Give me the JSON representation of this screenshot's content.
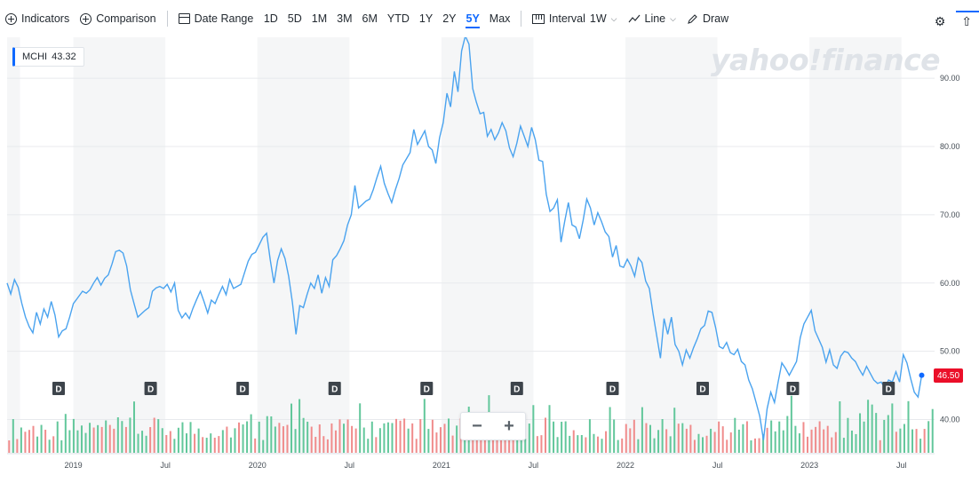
{
  "toolbar": {
    "indicators": "Indicators",
    "comparison": "Comparison",
    "date_range": "Date Range",
    "ranges": [
      "1D",
      "5D",
      "1M",
      "3M",
      "6M",
      "YTD",
      "1Y",
      "2Y",
      "5Y",
      "Max"
    ],
    "active_range": "5Y",
    "interval_label": "Interval",
    "interval_value": "1W",
    "line_label": "Line",
    "draw_label": "Draw"
  },
  "ticker": {
    "symbol": "MCHI",
    "value": "43.32"
  },
  "watermark": "yahoo!finance",
  "price_tag": "46.50",
  "zoom": {
    "minus": "−",
    "plus": "+"
  },
  "dividend_marker": "D",
  "colors": {
    "line": "#4aa3ef",
    "accent": "#0f69ff",
    "vol_up": "#62c79b",
    "vol_down": "#f08c8c",
    "price_tag": "#eb0f29",
    "band": "#f5f6f7"
  },
  "chart_data": {
    "type": "line",
    "interval": "1W",
    "title": "",
    "xlabel": "",
    "ylabel": "",
    "ylim": [
      35,
      96
    ],
    "yticks": [
      40,
      50,
      60,
      70,
      80,
      90
    ],
    "ytick_labels": [
      "40.00",
      "50.00",
      "60.00",
      "70.00",
      "80.00",
      "90.00"
    ],
    "x_ticks": [
      {
        "label": "2019",
        "t": 2019.0
      },
      {
        "label": "Jul",
        "t": 2019.5
      },
      {
        "label": "2020",
        "t": 2020.0
      },
      {
        "label": "Jul",
        "t": 2020.5
      },
      {
        "label": "2021",
        "t": 2021.0
      },
      {
        "label": "Jul",
        "t": 2021.5
      },
      {
        "label": "2022",
        "t": 2022.0
      },
      {
        "label": "Jul",
        "t": 2022.5
      },
      {
        "label": "2023",
        "t": 2023.0
      },
      {
        "label": "Jul",
        "t": 2023.5
      }
    ],
    "xlim": [
      2018.64,
      2023.68
    ],
    "series": [
      {
        "points": [
          [
            2018.64,
            60
          ],
          [
            2018.66,
            58.4
          ],
          [
            2018.68,
            60.5
          ],
          [
            2018.7,
            59.4
          ],
          [
            2018.72,
            57
          ],
          [
            2018.74,
            55
          ],
          [
            2018.76,
            53.6
          ],
          [
            2018.78,
            52.7
          ],
          [
            2018.8,
            55.7
          ],
          [
            2018.82,
            54
          ],
          [
            2018.84,
            56.2
          ],
          [
            2018.86,
            55
          ],
          [
            2018.88,
            57.3
          ],
          [
            2018.9,
            55.3
          ],
          [
            2018.92,
            52.1
          ],
          [
            2018.94,
            53
          ],
          [
            2018.96,
            53.3
          ],
          [
            2018.98,
            55
          ],
          [
            2019.0,
            57
          ],
          [
            2019.02,
            57.7
          ],
          [
            2019.05,
            58.8
          ],
          [
            2019.07,
            58.5
          ],
          [
            2019.09,
            59
          ],
          [
            2019.11,
            60
          ],
          [
            2019.13,
            60.8
          ],
          [
            2019.15,
            59.7
          ],
          [
            2019.17,
            60.7
          ],
          [
            2019.19,
            61.2
          ],
          [
            2019.21,
            62.8
          ],
          [
            2019.23,
            64.6
          ],
          [
            2019.25,
            64.8
          ],
          [
            2019.27,
            64.4
          ],
          [
            2019.29,
            62.5
          ],
          [
            2019.31,
            59
          ],
          [
            2019.33,
            57
          ],
          [
            2019.35,
            55
          ],
          [
            2019.37,
            55.5
          ],
          [
            2019.39,
            56
          ],
          [
            2019.41,
            56.4
          ],
          [
            2019.43,
            58.8
          ],
          [
            2019.45,
            59.3
          ],
          [
            2019.47,
            59.5
          ],
          [
            2019.49,
            59.2
          ],
          [
            2019.51,
            59.8
          ],
          [
            2019.53,
            58.7
          ],
          [
            2019.55,
            60
          ],
          [
            2019.57,
            56
          ],
          [
            2019.59,
            54.9
          ],
          [
            2019.61,
            55.6
          ],
          [
            2019.63,
            54.8
          ],
          [
            2019.65,
            56.3
          ],
          [
            2019.67,
            57.6
          ],
          [
            2019.69,
            58.8
          ],
          [
            2019.71,
            57.3
          ],
          [
            2019.73,
            55.6
          ],
          [
            2019.75,
            57.5
          ],
          [
            2019.77,
            57
          ],
          [
            2019.79,
            58.3
          ],
          [
            2019.81,
            59.5
          ],
          [
            2019.83,
            58.3
          ],
          [
            2019.85,
            60.5
          ],
          [
            2019.87,
            59.2
          ],
          [
            2019.89,
            59.5
          ],
          [
            2019.91,
            59.8
          ],
          [
            2019.93,
            61.5
          ],
          [
            2019.95,
            63.2
          ],
          [
            2019.97,
            64.2
          ],
          [
            2019.99,
            64.5
          ],
          [
            2020.01,
            65.6
          ],
          [
            2020.03,
            66.7
          ],
          [
            2020.05,
            67.3
          ],
          [
            2020.07,
            63.4
          ],
          [
            2020.09,
            60
          ],
          [
            2020.11,
            63.3
          ],
          [
            2020.13,
            65
          ],
          [
            2020.15,
            63.6
          ],
          [
            2020.17,
            61
          ],
          [
            2020.19,
            57.2
          ],
          [
            2020.21,
            52.5
          ],
          [
            2020.23,
            56.7
          ],
          [
            2020.25,
            56.4
          ],
          [
            2020.27,
            58.3
          ],
          [
            2020.29,
            60
          ],
          [
            2020.31,
            59.2
          ],
          [
            2020.33,
            61.2
          ],
          [
            2020.35,
            58.5
          ],
          [
            2020.37,
            60.8
          ],
          [
            2020.39,
            59.5
          ],
          [
            2020.41,
            63.4
          ],
          [
            2020.43,
            64
          ],
          [
            2020.45,
            65
          ],
          [
            2020.47,
            66.2
          ],
          [
            2020.49,
            68.5
          ],
          [
            2020.51,
            70
          ],
          [
            2020.53,
            74.3
          ],
          [
            2020.55,
            71
          ],
          [
            2020.57,
            71.5
          ],
          [
            2020.59,
            72
          ],
          [
            2020.61,
            72.3
          ],
          [
            2020.63,
            73.7
          ],
          [
            2020.65,
            75.5
          ],
          [
            2020.67,
            77.1
          ],
          [
            2020.69,
            74.6
          ],
          [
            2020.71,
            73.1
          ],
          [
            2020.73,
            71.8
          ],
          [
            2020.75,
            73.7
          ],
          [
            2020.77,
            75.3
          ],
          [
            2020.79,
            77.3
          ],
          [
            2020.81,
            78.2
          ],
          [
            2020.83,
            79.1
          ],
          [
            2020.85,
            82.5
          ],
          [
            2020.87,
            80.3
          ],
          [
            2020.89,
            81.3
          ],
          [
            2020.91,
            82.3
          ],
          [
            2020.93,
            80
          ],
          [
            2020.95,
            79.5
          ],
          [
            2020.97,
            77.5
          ],
          [
            2020.99,
            81.3
          ],
          [
            2021.01,
            83.5
          ],
          [
            2021.03,
            87.8
          ],
          [
            2021.05,
            85.8
          ],
          [
            2021.07,
            91
          ],
          [
            2021.09,
            88
          ],
          [
            2021.11,
            94
          ],
          [
            2021.13,
            96.2
          ],
          [
            2021.15,
            95
          ],
          [
            2021.17,
            88.5
          ],
          [
            2021.19,
            86.5
          ],
          [
            2021.21,
            84.8
          ],
          [
            2021.23,
            85
          ],
          [
            2021.25,
            81.5
          ],
          [
            2021.27,
            82.5
          ],
          [
            2021.29,
            81
          ],
          [
            2021.31,
            82
          ],
          [
            2021.33,
            83.5
          ],
          [
            2021.35,
            82.3
          ],
          [
            2021.37,
            79.8
          ],
          [
            2021.39,
            78.5
          ],
          [
            2021.41,
            80.5
          ],
          [
            2021.43,
            83
          ],
          [
            2021.45,
            81.5
          ],
          [
            2021.47,
            80
          ],
          [
            2021.49,
            82.8
          ],
          [
            2021.51,
            81
          ],
          [
            2021.53,
            78
          ],
          [
            2021.55,
            77.8
          ],
          [
            2021.57,
            73
          ],
          [
            2021.59,
            70.5
          ],
          [
            2021.61,
            71
          ],
          [
            2021.63,
            72.2
          ],
          [
            2021.65,
            66
          ],
          [
            2021.67,
            69
          ],
          [
            2021.69,
            71.8
          ],
          [
            2021.71,
            68.5
          ],
          [
            2021.73,
            68.2
          ],
          [
            2021.75,
            66.5
          ],
          [
            2021.77,
            69.2
          ],
          [
            2021.79,
            72.3
          ],
          [
            2021.81,
            71
          ],
          [
            2021.83,
            68.5
          ],
          [
            2021.85,
            70.3
          ],
          [
            2021.87,
            69
          ],
          [
            2021.89,
            67.5
          ],
          [
            2021.91,
            66.8
          ],
          [
            2021.93,
            63.8
          ],
          [
            2021.95,
            65.5
          ],
          [
            2021.97,
            62.5
          ],
          [
            2021.99,
            62.3
          ],
          [
            2022.01,
            63.5
          ],
          [
            2022.03,
            62.5
          ],
          [
            2022.05,
            61
          ],
          [
            2022.07,
            63.7
          ],
          [
            2022.09,
            63
          ],
          [
            2022.11,
            60.3
          ],
          [
            2022.13,
            59.2
          ],
          [
            2022.15,
            55.5
          ],
          [
            2022.17,
            52.3
          ],
          [
            2022.19,
            49
          ],
          [
            2022.21,
            54.8
          ],
          [
            2022.23,
            52.5
          ],
          [
            2022.25,
            55
          ],
          [
            2022.27,
            51
          ],
          [
            2022.29,
            50
          ],
          [
            2022.31,
            48
          ],
          [
            2022.33,
            50.2
          ],
          [
            2022.35,
            49
          ],
          [
            2022.37,
            50.5
          ],
          [
            2022.39,
            51.8
          ],
          [
            2022.41,
            53.3
          ],
          [
            2022.43,
            53.8
          ],
          [
            2022.45,
            55.9
          ],
          [
            2022.47,
            55.7
          ],
          [
            2022.49,
            53.5
          ],
          [
            2022.51,
            50.7
          ],
          [
            2022.53,
            50.4
          ],
          [
            2022.55,
            51.3
          ],
          [
            2022.57,
            49.8
          ],
          [
            2022.59,
            49.5
          ],
          [
            2022.61,
            50.3
          ],
          [
            2022.63,
            48.5
          ],
          [
            2022.65,
            48
          ],
          [
            2022.67,
            45.8
          ],
          [
            2022.69,
            44.5
          ],
          [
            2022.71,
            42.5
          ],
          [
            2022.73,
            40.5
          ],
          [
            2022.75,
            37
          ],
          [
            2022.77,
            41.6
          ],
          [
            2022.79,
            44
          ],
          [
            2022.81,
            42.5
          ],
          [
            2022.83,
            45.5
          ],
          [
            2022.85,
            48.3
          ],
          [
            2022.87,
            47.5
          ],
          [
            2022.89,
            46.5
          ],
          [
            2022.91,
            47.5
          ],
          [
            2022.93,
            48.5
          ],
          [
            2022.95,
            52
          ],
          [
            2022.97,
            54
          ],
          [
            2022.99,
            55
          ],
          [
            2023.01,
            56
          ],
          [
            2023.03,
            53
          ],
          [
            2023.05,
            51.8
          ],
          [
            2023.07,
            50.6
          ],
          [
            2023.09,
            48.4
          ],
          [
            2023.11,
            50.2
          ],
          [
            2023.13,
            48
          ],
          [
            2023.15,
            47.5
          ],
          [
            2023.17,
            49.3
          ],
          [
            2023.19,
            50
          ],
          [
            2023.21,
            49.8
          ],
          [
            2023.23,
            49
          ],
          [
            2023.25,
            48.5
          ],
          [
            2023.27,
            47.4
          ],
          [
            2023.29,
            46.5
          ],
          [
            2023.31,
            47.8
          ],
          [
            2023.33,
            46.8
          ],
          [
            2023.35,
            45.8
          ],
          [
            2023.37,
            45.3
          ],
          [
            2023.39,
            45.5
          ],
          [
            2023.41,
            44.6
          ],
          [
            2023.43,
            45.8
          ],
          [
            2023.45,
            45.5
          ],
          [
            2023.47,
            47
          ],
          [
            2023.49,
            45.5
          ],
          [
            2023.51,
            49.5
          ],
          [
            2023.53,
            48.3
          ],
          [
            2023.55,
            46
          ],
          [
            2023.57,
            44
          ],
          [
            2023.59,
            43.3
          ],
          [
            2023.61,
            46.5
          ]
        ]
      }
    ],
    "dividend_markers": [
      2018.92,
      2019.42,
      2019.92,
      2020.42,
      2020.92,
      2021.41,
      2021.93,
      2022.42,
      2022.91,
      2023.43
    ]
  }
}
